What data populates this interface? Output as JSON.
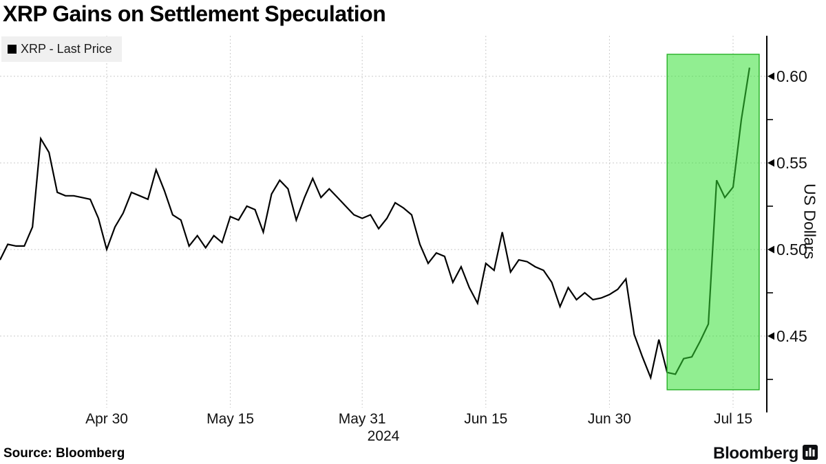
{
  "title": "XRP Gains on Settlement Speculation",
  "legend": {
    "swatch_color": "#000000",
    "label": "XRP - Last Price"
  },
  "footer": {
    "source": "Source: Bloomberg",
    "brand": "Bloomberg",
    "brand_icon": "bar-chart-logo"
  },
  "chart_data": {
    "type": "line",
    "title": "XRP Gains on Settlement Speculation",
    "series_name": "XRP - Last Price",
    "ylabel": "US Dollars",
    "year_label": "2024",
    "line_color": "#000000",
    "grid": true,
    "ylim": [
      0.4087,
      0.6234
    ],
    "y_ticks_major": [
      0.6,
      0.55,
      0.5,
      0.45
    ],
    "y_ticks_minor": [
      0.575,
      0.525,
      0.475,
      0.425
    ],
    "x_tick_labels": [
      "Apr 30",
      "May 15",
      "May 31",
      "Jun 15",
      "Jun 30",
      "Jul 15"
    ],
    "highlight_band": {
      "start_date": "Jul 7",
      "end_date": "Jul 18",
      "fill": "#37e037",
      "fill_opacity": 0.55,
      "border": "#2db32d"
    },
    "x": [
      "Apr 17",
      "Apr 18",
      "Apr 19",
      "Apr 20",
      "Apr 21",
      "Apr 22",
      "Apr 23",
      "Apr 24",
      "Apr 25",
      "Apr 26",
      "Apr 27",
      "Apr 28",
      "Apr 29",
      "Apr 30",
      "May 1",
      "May 2",
      "May 3",
      "May 4",
      "May 5",
      "May 6",
      "May 7",
      "May 8",
      "May 9",
      "May 10",
      "May 11",
      "May 12",
      "May 13",
      "May 14",
      "May 15",
      "May 16",
      "May 17",
      "May 18",
      "May 19",
      "May 20",
      "May 21",
      "May 22",
      "May 23",
      "May 24",
      "May 25",
      "May 26",
      "May 27",
      "May 28",
      "May 29",
      "May 30",
      "May 31",
      "Jun 1",
      "Jun 2",
      "Jun 3",
      "Jun 4",
      "Jun 5",
      "Jun 6",
      "Jun 7",
      "Jun 8",
      "Jun 9",
      "Jun 10",
      "Jun 11",
      "Jun 12",
      "Jun 13",
      "Jun 14",
      "Jun 15",
      "Jun 16",
      "Jun 17",
      "Jun 18",
      "Jun 19",
      "Jun 20",
      "Jun 21",
      "Jun 22",
      "Jun 23",
      "Jun 24",
      "Jun 25",
      "Jun 26",
      "Jun 27",
      "Jun 28",
      "Jun 29",
      "Jun 30",
      "Jul 1",
      "Jul 2",
      "Jul 3",
      "Jul 4",
      "Jul 5",
      "Jul 6",
      "Jul 7",
      "Jul 8",
      "Jul 9",
      "Jul 10",
      "Jul 11",
      "Jul 12",
      "Jul 13",
      "Jul 14",
      "Jul 15",
      "Jul 16",
      "Jul 17"
    ],
    "values": [
      0.494,
      0.503,
      0.502,
      0.502,
      0.513,
      0.564,
      0.556,
      0.533,
      0.531,
      0.531,
      0.53,
      0.529,
      0.518,
      0.5,
      0.513,
      0.521,
      0.533,
      0.531,
      0.529,
      0.546,
      0.534,
      0.52,
      0.517,
      0.502,
      0.508,
      0.501,
      0.508,
      0.504,
      0.519,
      0.517,
      0.525,
      0.523,
      0.51,
      0.532,
      0.54,
      0.535,
      0.517,
      0.53,
      0.541,
      0.53,
      0.535,
      0.53,
      0.525,
      0.52,
      0.518,
      0.52,
      0.512,
      0.518,
      0.527,
      0.524,
      0.52,
      0.503,
      0.492,
      0.498,
      0.496,
      0.481,
      0.49,
      0.478,
      0.469,
      0.492,
      0.488,
      0.51,
      0.487,
      0.494,
      0.493,
      0.49,
      0.488,
      0.481,
      0.467,
      0.478,
      0.471,
      0.475,
      0.471,
      0.472,
      0.474,
      0.477,
      0.483,
      0.451,
      0.438,
      0.426,
      0.448,
      0.429,
      0.428,
      0.437,
      0.438,
      0.447,
      0.457,
      0.54,
      0.53,
      0.536,
      0.575,
      0.605
    ]
  }
}
